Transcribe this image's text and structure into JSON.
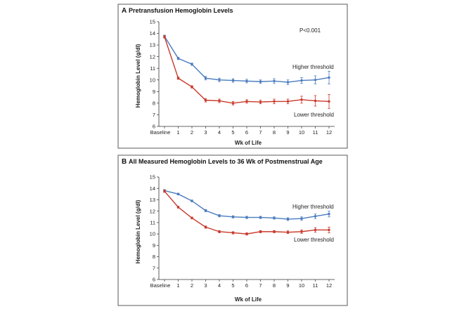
{
  "chart_data": [
    {
      "type": "line",
      "panel_letter": "A",
      "title": "Pretransfusion Hemoglobin Levels",
      "xlabel": "Wk of Life",
      "ylabel": "Hemoglobin Level (g/dl)",
      "ylim": [
        6,
        15
      ],
      "yticks": [
        6,
        7,
        8,
        9,
        10,
        11,
        12,
        13,
        14,
        15
      ],
      "categories": [
        "Baseline",
        "1",
        "2",
        "3",
        "4",
        "5",
        "6",
        "7",
        "8",
        "9",
        "10",
        "11",
        "12"
      ],
      "annotation": "P<0.001",
      "series": [
        {
          "name": "Higher threshold",
          "color": "#4a7bbf",
          "values": [
            13.75,
            11.85,
            11.35,
            10.15,
            10.0,
            9.95,
            9.9,
            9.85,
            9.9,
            9.8,
            9.95,
            10.0,
            10.2
          ],
          "errors": [
            0.1,
            0.1,
            0.1,
            0.15,
            0.15,
            0.15,
            0.15,
            0.15,
            0.2,
            0.2,
            0.25,
            0.35,
            0.55
          ]
        },
        {
          "name": "Lower threshold",
          "color": "#c8392b",
          "values": [
            13.7,
            10.15,
            9.4,
            8.25,
            8.2,
            8.0,
            8.15,
            8.1,
            8.15,
            8.15,
            8.3,
            8.2,
            8.15
          ],
          "errors": [
            0.1,
            0.1,
            0.1,
            0.15,
            0.15,
            0.15,
            0.15,
            0.15,
            0.2,
            0.2,
            0.3,
            0.45,
            0.6
          ]
        }
      ]
    },
    {
      "type": "line",
      "panel_letter": "B",
      "title": "All Measured Hemoglobin Levels to 36 Wk of Postmenstrual Age",
      "xlabel": "Wk of Life",
      "ylabel": "Hemoglobin Level (g/dl)",
      "ylim": [
        6,
        15
      ],
      "yticks": [
        6,
        7,
        8,
        9,
        10,
        11,
        12,
        13,
        14,
        15
      ],
      "categories": [
        "Baseline",
        "1",
        "2",
        "3",
        "4",
        "5",
        "6",
        "7",
        "8",
        "9",
        "10",
        "11",
        "12"
      ],
      "series": [
        {
          "name": "Higher threshold",
          "color": "#4a7bbf",
          "values": [
            13.8,
            13.5,
            12.9,
            12.05,
            11.6,
            11.5,
            11.45,
            11.45,
            11.4,
            11.3,
            11.35,
            11.55,
            11.75
          ],
          "errors": [
            0.1,
            0.08,
            0.08,
            0.1,
            0.1,
            0.1,
            0.1,
            0.1,
            0.1,
            0.12,
            0.15,
            0.2,
            0.25
          ]
        },
        {
          "name": "Lower threshold",
          "color": "#c8392b",
          "values": [
            13.75,
            12.35,
            11.4,
            10.6,
            10.2,
            10.1,
            10.0,
            10.2,
            10.2,
            10.15,
            10.2,
            10.35,
            10.35
          ],
          "errors": [
            0.1,
            0.08,
            0.08,
            0.1,
            0.1,
            0.1,
            0.1,
            0.1,
            0.1,
            0.12,
            0.15,
            0.2,
            0.25
          ]
        }
      ]
    }
  ]
}
